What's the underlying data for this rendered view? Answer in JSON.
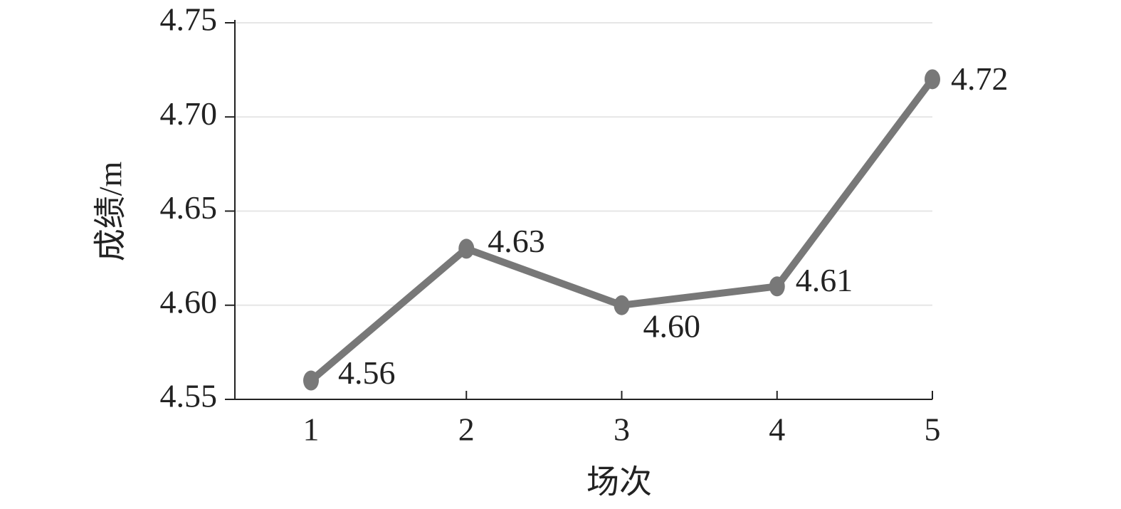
{
  "chart_data": {
    "type": "line",
    "x_label": "场次",
    "y_label": "成绩/m",
    "categories": [
      "1",
      "2",
      "3",
      "4",
      "5"
    ],
    "series": [
      {
        "color": "#787878",
        "values": [
          4.56,
          4.63,
          4.6,
          4.61,
          4.72
        ],
        "value_labels": [
          "4.56",
          "4.63",
          "4.60",
          "4.61",
          "4.72"
        ]
      }
    ],
    "ylim": [
      4.55,
      4.75
    ],
    "yticks": [
      4.55,
      {
        "value": 4.6,
        "label": "4.60"
      },
      4.65,
      {
        "value": 4.7,
        "label": "4.70"
      },
      4.75
    ],
    "grid": true
  }
}
